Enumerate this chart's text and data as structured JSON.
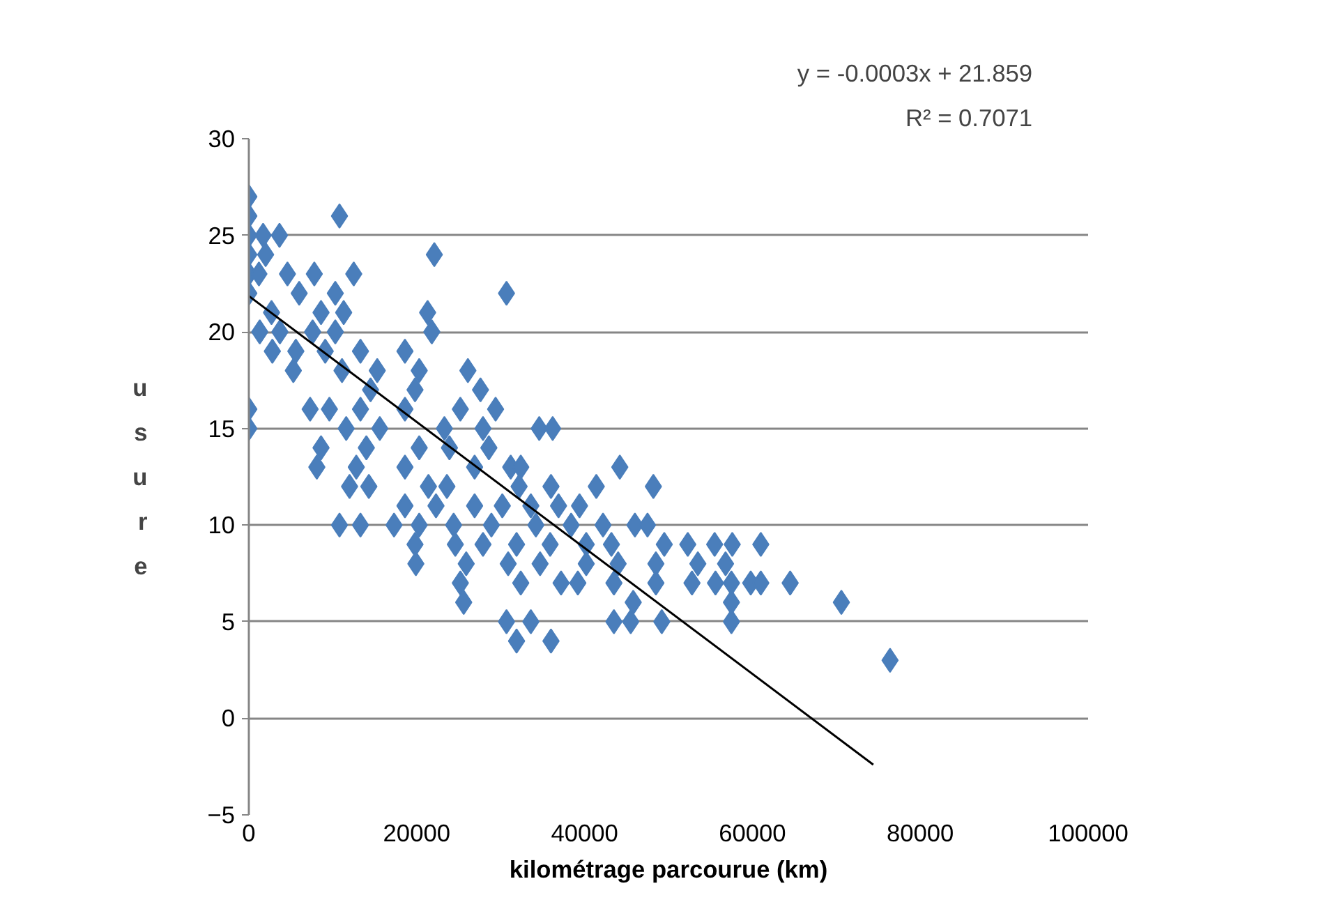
{
  "chart_data": {
    "type": "scatter",
    "xlabel": "kilométrage parcourue (km)",
    "ylabel": "usure",
    "annotations": [
      "y = -0.0003x + 21.859",
      "R² = 0.7071"
    ],
    "xlim": [
      0,
      100000
    ],
    "ylim": [
      -5,
      30
    ],
    "xticks": [
      0,
      20000,
      40000,
      60000,
      80000,
      100000
    ],
    "yticks": [
      -5,
      0,
      5,
      10,
      15,
      20,
      25,
      30
    ],
    "grid": "y",
    "marker": "diamond",
    "series": [
      {
        "color": "#4a7ebb",
        "x": [
          0,
          0,
          0,
          0,
          0,
          0,
          0,
          0,
          10800,
          3650,
          1700,
          2000,
          22100,
          30700,
          12500,
          7800,
          4600,
          1200,
          10300,
          6000,
          2700,
          8600,
          11300,
          21300,
          3700,
          7600,
          10300,
          21800,
          1300,
          2800,
          5600,
          9100,
          13300,
          18600,
          5300,
          11100,
          15300,
          20300,
          26100,
          14500,
          19800,
          27600,
          7300,
          9600,
          13300,
          18600,
          25200,
          29400,
          11600,
          15600,
          23300,
          27900,
          34600,
          36200,
          8600,
          14000,
          20300,
          23900,
          28600,
          8100,
          12800,
          18600,
          26900,
          31200,
          32400,
          44200,
          12000,
          14300,
          21400,
          23600,
          32200,
          36000,
          41400,
          48200,
          18600,
          22300,
          26900,
          30200,
          33600,
          36900,
          39400,
          10800,
          13300,
          17300,
          20300,
          24400,
          28900,
          34200,
          38400,
          42200,
          46000,
          47500,
          19800,
          24600,
          27900,
          31900,
          35900,
          40200,
          43200,
          49500,
          52300,
          55500,
          57600,
          61000,
          19900,
          25900,
          30900,
          34700,
          40200,
          44000,
          48500,
          53500,
          56800,
          25200,
          32400,
          37200,
          39200,
          43500,
          48500,
          52800,
          55600,
          57500,
          59800,
          61000,
          64500,
          25600,
          45800,
          57500,
          70600,
          30700,
          33600,
          43500,
          45500,
          49200,
          57500,
          31900,
          36000,
          76400
        ],
        "values": [
          27,
          26,
          25,
          24,
          23,
          22,
          16,
          15,
          26,
          25,
          25,
          24,
          24,
          22,
          23,
          23,
          23,
          23,
          22,
          22,
          21,
          21,
          21,
          21,
          20,
          20,
          20,
          20,
          20,
          19,
          19,
          19,
          19,
          19,
          18,
          18,
          18,
          18,
          18,
          17,
          17,
          17,
          16,
          16,
          16,
          16,
          16,
          16,
          15,
          15,
          15,
          15,
          15,
          15,
          14,
          14,
          14,
          14,
          14,
          13,
          13,
          13,
          13,
          13,
          13,
          13,
          12,
          12,
          12,
          12,
          12,
          12,
          12,
          12,
          11,
          11,
          11,
          11,
          11,
          11,
          11,
          10,
          10,
          10,
          10,
          10,
          10,
          10,
          10,
          10,
          10,
          10,
          9,
          9,
          9,
          9,
          9,
          9,
          9,
          9,
          9,
          9,
          9,
          9,
          8,
          8,
          8,
          8,
          8,
          8,
          8,
          8,
          8,
          7,
          7,
          7,
          7,
          7,
          7,
          7,
          7,
          7,
          7,
          7,
          7,
          6,
          6,
          6,
          6,
          5,
          5,
          5,
          5,
          5,
          5,
          4,
          4,
          3
        ]
      },
      {
        "type": "line",
        "color": "#000000",
        "marker": "none",
        "line_style": "solid",
        "x": [
          0,
          74400
        ],
        "values": [
          21.859,
          -2.4
        ]
      }
    ]
  }
}
